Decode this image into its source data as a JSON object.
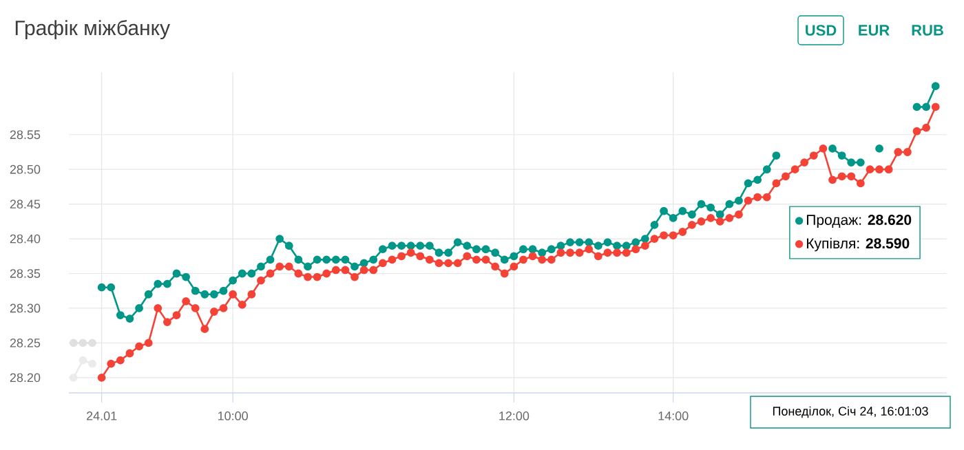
{
  "chart_data": {
    "type": "line",
    "title": "Графік міжбанку",
    "categories": [
      null,
      null,
      null,
      "24.01",
      null,
      null,
      null,
      null,
      null,
      null,
      null,
      null,
      null,
      null,
      null,
      null,
      null,
      "10:00",
      null,
      null,
      null,
      null,
      null,
      null,
      null,
      null,
      null,
      null,
      null,
      null,
      null,
      null,
      null,
      null,
      null,
      null,
      null,
      null,
      null,
      null,
      null,
      null,
      null,
      null,
      null,
      null,
      null,
      "12:00",
      null,
      null,
      null,
      null,
      null,
      null,
      null,
      null,
      null,
      null,
      null,
      null,
      null,
      null,
      null,
      null,
      "14:00",
      null,
      null,
      null,
      null,
      null,
      null,
      null,
      null,
      null,
      null,
      null,
      null,
      null,
      null,
      null,
      null,
      null,
      null,
      null,
      null,
      null,
      null,
      null,
      null,
      null,
      null,
      null,
      null
    ],
    "series": [
      {
        "color": "#e0e0e0",
        "values": [
          28.25,
          28.25,
          28.25,
          null,
          null,
          null,
          null,
          null,
          null,
          null,
          null,
          null,
          null,
          null,
          null,
          null,
          null,
          null,
          null,
          null,
          null,
          null,
          null,
          null,
          null,
          null,
          null,
          null,
          null,
          null,
          null,
          null,
          null,
          null,
          null,
          null,
          null,
          null,
          null,
          null,
          null,
          null,
          null,
          null,
          null,
          null,
          null,
          null,
          null,
          null,
          null,
          null,
          null,
          null,
          null,
          null,
          null,
          null,
          null,
          null,
          null,
          null,
          null,
          null,
          null,
          null,
          null,
          null,
          null,
          null,
          null,
          null,
          null,
          null,
          null,
          null,
          null,
          null,
          null,
          null,
          null,
          null,
          null,
          null,
          null,
          null,
          null,
          null,
          null,
          null,
          null,
          null,
          null
        ]
      },
      {
        "color": "#ebebeb",
        "values": [
          28.2,
          28.225,
          28.22,
          null,
          null,
          null,
          null,
          null,
          null,
          null,
          null,
          null,
          null,
          null,
          null,
          null,
          null,
          null,
          null,
          null,
          null,
          null,
          null,
          null,
          null,
          null,
          null,
          null,
          null,
          null,
          null,
          null,
          null,
          null,
          null,
          null,
          null,
          null,
          null,
          null,
          null,
          null,
          null,
          null,
          null,
          null,
          null,
          null,
          null,
          null,
          null,
          null,
          null,
          null,
          null,
          null,
          null,
          null,
          null,
          null,
          null,
          null,
          null,
          null,
          null,
          null,
          null,
          null,
          null,
          null,
          null,
          null,
          null,
          null,
          null,
          null,
          null,
          null,
          null,
          null,
          null,
          null,
          null,
          null,
          null,
          null,
          null,
          null,
          null,
          null,
          null,
          null,
          null
        ]
      },
      {
        "name": "Продаж",
        "color": "#009688",
        "values": [
          null,
          null,
          null,
          28.33,
          28.33,
          28.29,
          28.285,
          28.3,
          28.32,
          28.335,
          28.335,
          28.35,
          28.345,
          28.325,
          28.32,
          28.32,
          28.325,
          28.34,
          28.35,
          28.35,
          28.36,
          28.37,
          28.4,
          28.39,
          28.37,
          28.36,
          28.37,
          28.37,
          28.37,
          28.37,
          28.36,
          28.365,
          28.37,
          28.385,
          28.39,
          28.39,
          28.39,
          28.39,
          28.39,
          28.38,
          28.38,
          28.395,
          28.39,
          28.385,
          28.385,
          28.38,
          28.37,
          28.375,
          28.385,
          28.385,
          28.38,
          28.385,
          28.39,
          28.395,
          28.395,
          28.395,
          28.39,
          28.395,
          28.39,
          28.39,
          28.395,
          28.4,
          28.42,
          28.44,
          28.43,
          28.44,
          28.435,
          28.45,
          28.445,
          28.435,
          28.45,
          28.455,
          28.48,
          28.485,
          28.5,
          28.52,
          null,
          null,
          null,
          null,
          null,
          28.53,
          28.52,
          28.51,
          28.51,
          null,
          28.53,
          null,
          null,
          null,
          28.59,
          28.59,
          28.62
        ]
      },
      {
        "name": "Купівля",
        "color": "#f44336",
        "values": [
          null,
          null,
          null,
          28.2,
          28.22,
          28.225,
          28.235,
          28.245,
          28.25,
          28.3,
          28.28,
          28.29,
          28.31,
          28.3,
          28.27,
          28.295,
          28.3,
          28.32,
          28.305,
          28.32,
          28.34,
          28.35,
          28.36,
          28.36,
          28.35,
          28.345,
          28.345,
          28.35,
          28.355,
          28.355,
          28.345,
          28.355,
          28.355,
          28.365,
          28.37,
          28.375,
          28.38,
          28.375,
          28.37,
          28.365,
          28.365,
          28.365,
          28.375,
          28.37,
          28.37,
          28.36,
          28.35,
          28.36,
          28.37,
          28.375,
          28.37,
          28.37,
          28.38,
          28.38,
          28.38,
          28.385,
          28.375,
          28.38,
          28.38,
          28.38,
          28.385,
          28.39,
          28.4,
          28.405,
          28.405,
          28.41,
          28.42,
          28.425,
          28.43,
          28.425,
          28.43,
          28.435,
          28.455,
          28.46,
          28.46,
          28.48,
          28.49,
          28.5,
          28.51,
          28.52,
          28.53,
          28.485,
          28.49,
          28.49,
          28.48,
          28.5,
          28.5,
          28.5,
          28.525,
          28.525,
          28.555,
          28.56,
          28.59
        ]
      }
    ],
    "ylim": [
      28.178,
      28.64
    ],
    "yticks": [
      {
        "value": 28.2,
        "label": "28.20"
      },
      {
        "value": 28.25,
        "label": "28.25"
      },
      {
        "value": 28.3,
        "label": "28.30"
      },
      {
        "value": 28.35,
        "label": "28.35"
      },
      {
        "value": 28.4,
        "label": "28.40"
      },
      {
        "value": 28.45,
        "label": "28.45"
      },
      {
        "value": 28.5,
        "label": "28.50"
      },
      {
        "value": 28.55,
        "label": "28.55"
      }
    ],
    "grid": true,
    "legend": "right",
    "marker": "circle",
    "line_style": "solid",
    "annotations": [
      "USD",
      "EUR",
      "RUB",
      ": **28.620**",
      ": **28.590**",
      "Понеділок, Січ 24, 16:01:03"
    ]
  }
}
